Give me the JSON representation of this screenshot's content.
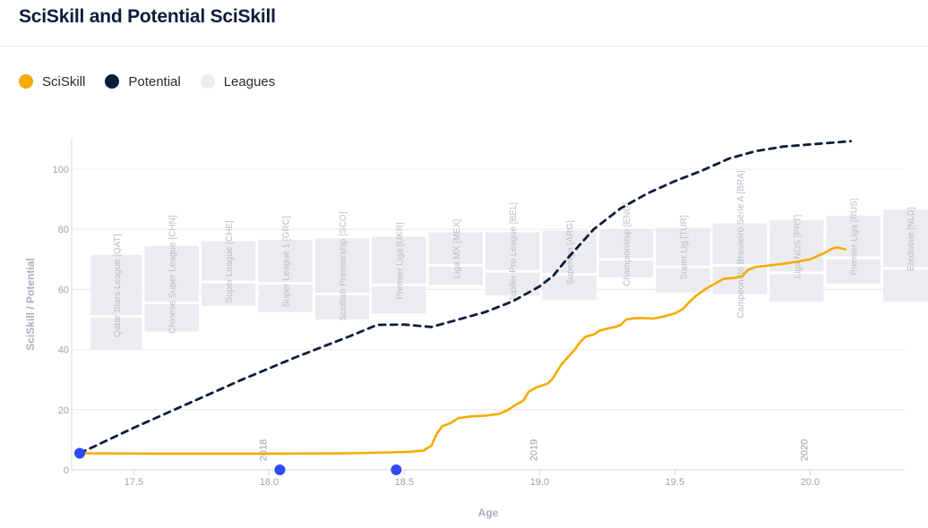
{
  "header": {
    "title": "SciSkill and Potential SciSkill"
  },
  "legend": [
    {
      "label": "SciSkill",
      "color": "#f5ab00",
      "icon": "circle"
    },
    {
      "label": "Potential",
      "color": "#0d1c3c",
      "icon": "circle"
    },
    {
      "label": "Leagues",
      "color": "#ebecef",
      "icon": "circle"
    }
  ],
  "chart_data": {
    "type": "line",
    "xlabel": "Age",
    "ylabel": "SciSkill / Potential",
    "xlim": [
      17.3,
      20.35
    ],
    "ylim": [
      0,
      110
    ],
    "x_ticks": [
      17.5,
      18.0,
      18.5,
      19.0,
      19.5,
      20.0
    ],
    "y_ticks": [
      0,
      20,
      40,
      60,
      80,
      100
    ],
    "grid": "horizontal",
    "legend_position": "top-left",
    "year_markers": [
      {
        "label": "2018",
        "x": 17.98
      },
      {
        "label": "2019",
        "x": 18.98
      },
      {
        "label": "2020",
        "x": 19.98
      }
    ],
    "event_markers": [
      {
        "x": 17.3,
        "y": 5.5
      },
      {
        "x": 18.04,
        "y": 0
      },
      {
        "x": 18.47,
        "y": 0
      }
    ],
    "leagues": [
      {
        "name": "Qatar Stars League [QAT]",
        "x0": 17.34,
        "x1": 17.53,
        "y0": 40,
        "y1": 71.5,
        "split": 51
      },
      {
        "name": "Chinese Super League [CHN]",
        "x0": 17.54,
        "x1": 17.74,
        "y0": 46,
        "y1": 74.5,
        "split": 55.5
      },
      {
        "name": "Super League [CHE]",
        "x0": 17.75,
        "x1": 17.95,
        "y0": 54.5,
        "y1": 76,
        "split": 62.5
      },
      {
        "name": "Super League 1 [GRC]",
        "x0": 17.96,
        "x1": 18.16,
        "y0": 52.5,
        "y1": 76.5,
        "split": 62
      },
      {
        "name": "Scottish Premiership [SCO]",
        "x0": 18.17,
        "x1": 18.37,
        "y0": 50,
        "y1": 77,
        "split": 58.5
      },
      {
        "name": "Premier Liga [UKR]",
        "x0": 18.38,
        "x1": 18.58,
        "y0": 52,
        "y1": 77.5,
        "split": 61.5
      },
      {
        "name": "Liga MX [MEX]",
        "x0": 18.59,
        "x1": 18.79,
        "y0": 61.5,
        "y1": 79,
        "split": 68
      },
      {
        "name": "Jupiler Pro League [BEL]",
        "x0": 18.8,
        "x1": 19.0,
        "y0": 58,
        "y1": 79,
        "split": 66
      },
      {
        "name": "Superliga [ARG]",
        "x0": 19.01,
        "x1": 19.21,
        "y0": 56.5,
        "y1": 79.5,
        "split": 65
      },
      {
        "name": "Championship [ENG]",
        "x0": 19.22,
        "x1": 19.42,
        "y0": 64,
        "y1": 80,
        "split": 70
      },
      {
        "name": "Super Lig [TUR]",
        "x0": 19.43,
        "x1": 19.63,
        "y0": 59,
        "y1": 80.5,
        "split": 67.5
      },
      {
        "name": "Campeonato Brasileiro Série A [BRA]",
        "x0": 19.64,
        "x1": 19.84,
        "y0": 58.5,
        "y1": 82,
        "split": 68
      },
      {
        "name": "Liga NOS [PRT]",
        "x0": 19.85,
        "x1": 20.05,
        "y0": 56,
        "y1": 83,
        "split": 65.5
      },
      {
        "name": "Premier Liga [RUS]",
        "x0": 20.06,
        "x1": 20.26,
        "y0": 62,
        "y1": 84.5,
        "split": 70.5
      },
      {
        "name": "Eredivisie [NLD]",
        "x0": 20.27,
        "x1": 20.47,
        "y0": 56,
        "y1": 86.5,
        "split": 67
      }
    ],
    "series": [
      {
        "name": "SciSkill",
        "style": "solid",
        "color": "#f5ab00",
        "points": [
          [
            17.3,
            5.5
          ],
          [
            17.6,
            5.4
          ],
          [
            18.0,
            5.4
          ],
          [
            18.3,
            5.5
          ],
          [
            18.45,
            5.8
          ],
          [
            18.52,
            6.0
          ],
          [
            18.57,
            6.4
          ],
          [
            18.6,
            8
          ],
          [
            18.62,
            12
          ],
          [
            18.64,
            14.5
          ],
          [
            18.67,
            15.5
          ],
          [
            18.7,
            17.2
          ],
          [
            18.75,
            17.8
          ],
          [
            18.8,
            18.0
          ],
          [
            18.85,
            18.6
          ],
          [
            18.88,
            19.8
          ],
          [
            18.91,
            21.5
          ],
          [
            18.94,
            23
          ],
          [
            18.96,
            26
          ],
          [
            18.99,
            27.5
          ],
          [
            19.03,
            28.7
          ],
          [
            19.05,
            30.5
          ],
          [
            19.08,
            35
          ],
          [
            19.1,
            37
          ],
          [
            19.13,
            40
          ],
          [
            19.15,
            42.5
          ],
          [
            19.17,
            44.3
          ],
          [
            19.2,
            45
          ],
          [
            19.22,
            46.2
          ],
          [
            19.25,
            47
          ],
          [
            19.28,
            47.5
          ],
          [
            19.3,
            48.2
          ],
          [
            19.32,
            50
          ],
          [
            19.35,
            50.4
          ],
          [
            19.38,
            50.5
          ],
          [
            19.42,
            50.3
          ],
          [
            19.45,
            50.8
          ],
          [
            19.5,
            52
          ],
          [
            19.53,
            53.5
          ],
          [
            19.55,
            55.5
          ],
          [
            19.58,
            58
          ],
          [
            19.62,
            60.5
          ],
          [
            19.66,
            62.5
          ],
          [
            19.68,
            63.5
          ],
          [
            19.72,
            63.8
          ],
          [
            19.75,
            64.5
          ],
          [
            19.77,
            66.5
          ],
          [
            19.8,
            67.5
          ],
          [
            19.85,
            68
          ],
          [
            19.9,
            68.5
          ],
          [
            19.95,
            69.2
          ],
          [
            20.0,
            70
          ],
          [
            20.05,
            72
          ],
          [
            20.08,
            73.5
          ],
          [
            20.1,
            74
          ],
          [
            20.13,
            73.3
          ]
        ]
      },
      {
        "name": "Potential",
        "style": "dashed",
        "color": "#0d1c3c",
        "points": [
          [
            17.3,
            5.5
          ],
          [
            17.5,
            14
          ],
          [
            17.7,
            22
          ],
          [
            17.9,
            30
          ],
          [
            18.1,
            37.5
          ],
          [
            18.3,
            44.5
          ],
          [
            18.4,
            48.2
          ],
          [
            18.5,
            48.3
          ],
          [
            18.6,
            47.5
          ],
          [
            18.7,
            50
          ],
          [
            18.8,
            52.5
          ],
          [
            18.9,
            56
          ],
          [
            19.0,
            61
          ],
          [
            19.05,
            64.5
          ],
          [
            19.1,
            70
          ],
          [
            19.2,
            80
          ],
          [
            19.3,
            87
          ],
          [
            19.4,
            92
          ],
          [
            19.5,
            96
          ],
          [
            19.6,
            99.5
          ],
          [
            19.7,
            103.5
          ],
          [
            19.8,
            106
          ],
          [
            19.9,
            107.5
          ],
          [
            20.0,
            108.2
          ],
          [
            20.15,
            109.3
          ]
        ]
      }
    ]
  }
}
